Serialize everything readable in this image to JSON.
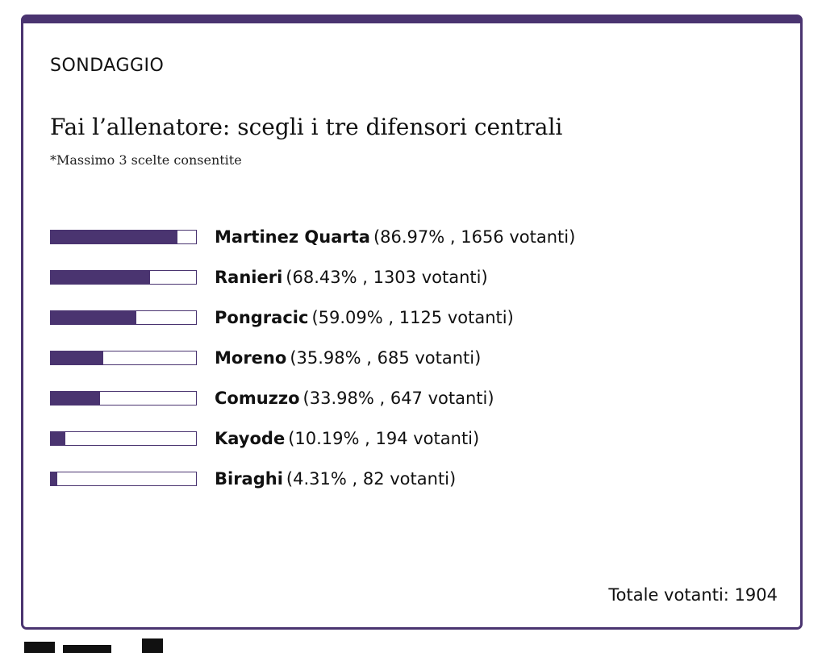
{
  "poll": {
    "label": "SONDAGGIO",
    "question": "Fai l’allenatore: scegli i tre difensori centrali",
    "note": "*Massimo 3 scelte consentite",
    "accent_color": "#4a3470",
    "options": [
      {
        "name": "Martinez Quarta",
        "stats": "(86.97% , 1656 votanti)",
        "percent": 86.97
      },
      {
        "name": "Ranieri",
        "stats": "(68.43% , 1303 votanti)",
        "percent": 68.43
      },
      {
        "name": "Pongracic",
        "stats": "(59.09% , 1125 votanti)",
        "percent": 59.09
      },
      {
        "name": "Moreno",
        "stats": "(35.98% , 685 votanti)",
        "percent": 35.98
      },
      {
        "name": "Comuzzo",
        "stats": "(33.98% , 647 votanti)",
        "percent": 33.98
      },
      {
        "name": "Kayode",
        "stats": "(10.19% , 194 votanti)",
        "percent": 10.19
      },
      {
        "name": "Biraghi",
        "stats": "(4.31% , 82 votanti)",
        "percent": 4.31
      }
    ],
    "total": "Totale votanti: 1904"
  }
}
